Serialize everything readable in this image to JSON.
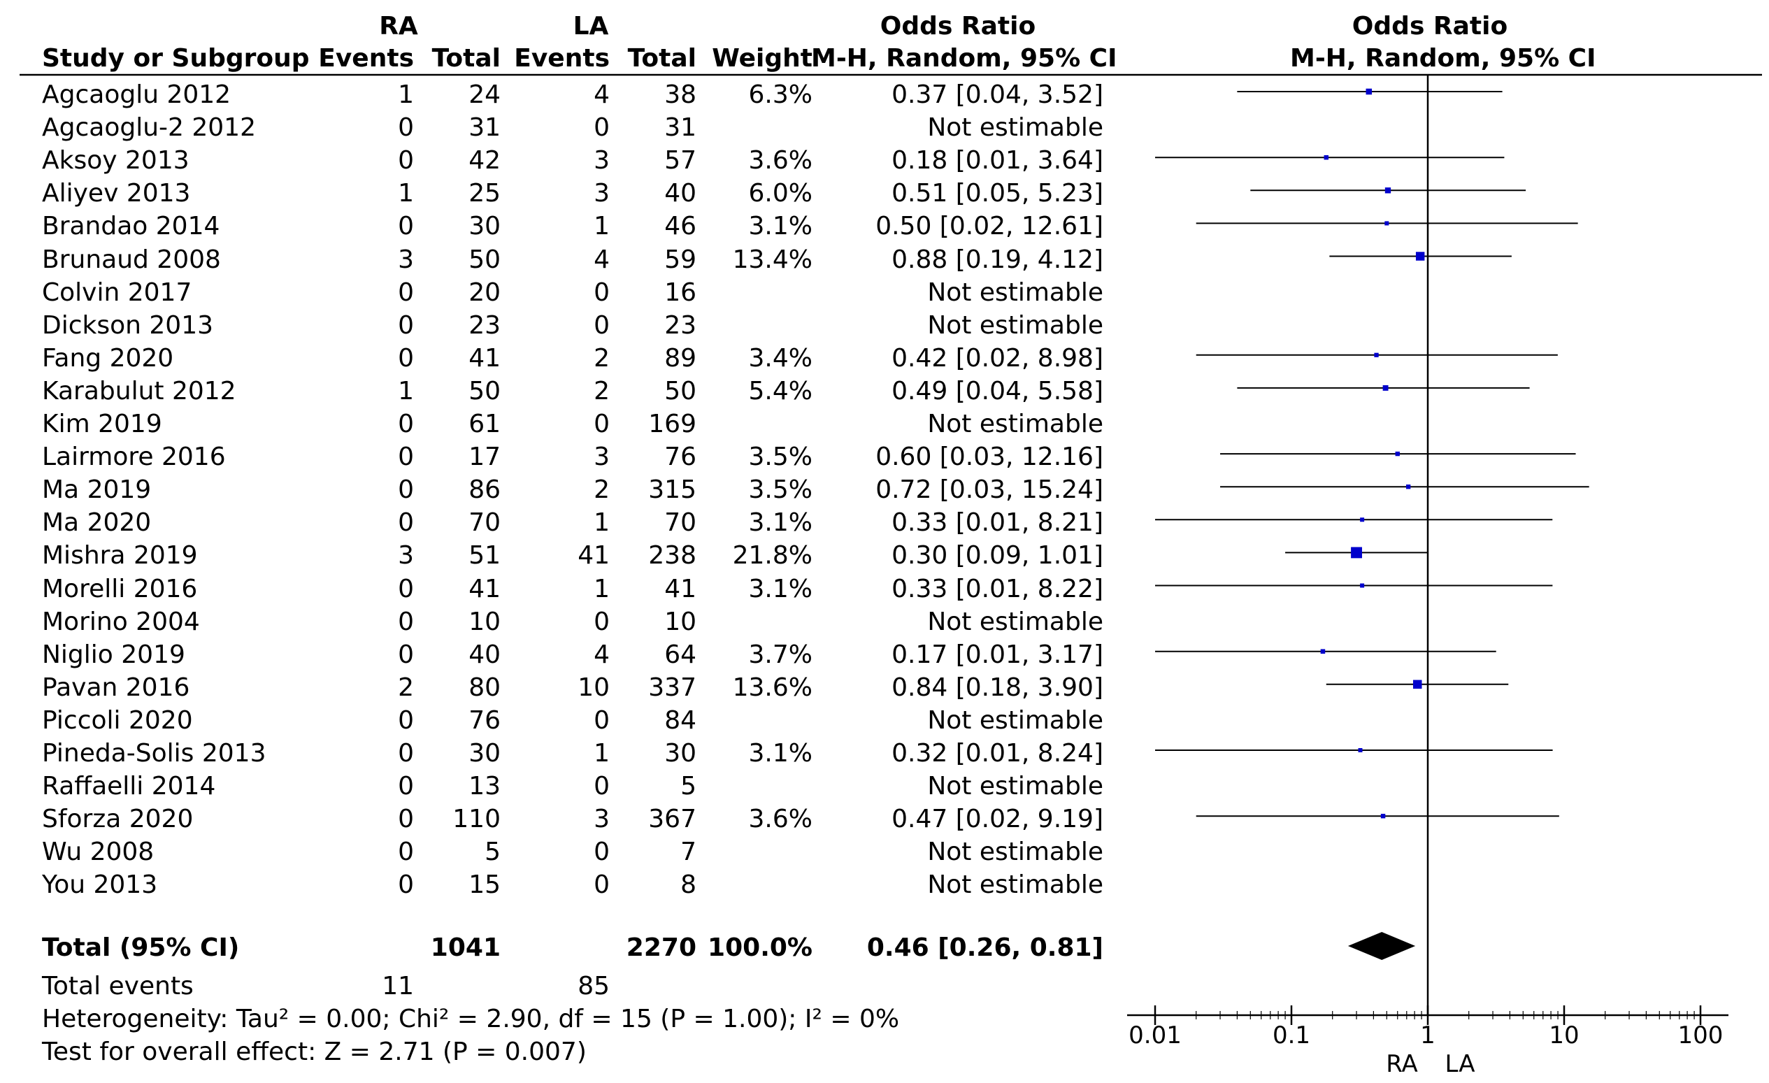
{
  "header": {
    "group_ra": "RA",
    "group_la": "LA",
    "or_title": "Odds Ratio",
    "or_method": "M-H, Random, 95% CI",
    "plot_title": "Odds Ratio",
    "plot_method": "M-H, Random, 95% CI",
    "col_study": "Study or Subgroup",
    "col_ra_events": "Events",
    "col_ra_total": "Total",
    "col_la_events": "Events",
    "col_la_total": "Total",
    "col_weight": "Weight"
  },
  "studies": [
    {
      "name": "Agcaoglu 2012",
      "ra_events": "1",
      "ra_total": "24",
      "la_events": "4",
      "la_total": "38",
      "weight": "6.3%",
      "ci_text": "0.37 [0.04, 3.52]"
    },
    {
      "name": "Agcaoglu-2 2012",
      "ra_events": "0",
      "ra_total": "31",
      "la_events": "0",
      "la_total": "31",
      "weight": "",
      "ci_text": "Not estimable"
    },
    {
      "name": "Aksoy 2013",
      "ra_events": "0",
      "ra_total": "42",
      "la_events": "3",
      "la_total": "57",
      "weight": "3.6%",
      "ci_text": "0.18 [0.01, 3.64]"
    },
    {
      "name": "Aliyev 2013",
      "ra_events": "1",
      "ra_total": "25",
      "la_events": "3",
      "la_total": "40",
      "weight": "6.0%",
      "ci_text": "0.51 [0.05, 5.23]"
    },
    {
      "name": "Brandao 2014",
      "ra_events": "0",
      "ra_total": "30",
      "la_events": "1",
      "la_total": "46",
      "weight": "3.1%",
      "ci_text": "0.50 [0.02, 12.61]"
    },
    {
      "name": "Brunaud 2008",
      "ra_events": "3",
      "ra_total": "50",
      "la_events": "4",
      "la_total": "59",
      "weight": "13.4%",
      "ci_text": "0.88 [0.19, 4.12]"
    },
    {
      "name": "Colvin 2017",
      "ra_events": "0",
      "ra_total": "20",
      "la_events": "0",
      "la_total": "16",
      "weight": "",
      "ci_text": "Not estimable"
    },
    {
      "name": "Dickson 2013",
      "ra_events": "0",
      "ra_total": "23",
      "la_events": "0",
      "la_total": "23",
      "weight": "",
      "ci_text": "Not estimable"
    },
    {
      "name": "Fang 2020",
      "ra_events": "0",
      "ra_total": "41",
      "la_events": "2",
      "la_total": "89",
      "weight": "3.4%",
      "ci_text": "0.42 [0.02, 8.98]"
    },
    {
      "name": "Karabulut 2012",
      "ra_events": "1",
      "ra_total": "50",
      "la_events": "2",
      "la_total": "50",
      "weight": "5.4%",
      "ci_text": "0.49 [0.04, 5.58]"
    },
    {
      "name": "Kim 2019",
      "ra_events": "0",
      "ra_total": "61",
      "la_events": "0",
      "la_total": "169",
      "weight": "",
      "ci_text": "Not estimable"
    },
    {
      "name": "Lairmore 2016",
      "ra_events": "0",
      "ra_total": "17",
      "la_events": "3",
      "la_total": "76",
      "weight": "3.5%",
      "ci_text": "0.60 [0.03, 12.16]"
    },
    {
      "name": "Ma 2019",
      "ra_events": "0",
      "ra_total": "86",
      "la_events": "2",
      "la_total": "315",
      "weight": "3.5%",
      "ci_text": "0.72 [0.03, 15.24]"
    },
    {
      "name": "Ma 2020",
      "ra_events": "0",
      "ra_total": "70",
      "la_events": "1",
      "la_total": "70",
      "weight": "3.1%",
      "ci_text": "0.33 [0.01, 8.21]"
    },
    {
      "name": "Mishra 2019",
      "ra_events": "3",
      "ra_total": "51",
      "la_events": "41",
      "la_total": "238",
      "weight": "21.8%",
      "ci_text": "0.30 [0.09, 1.01]"
    },
    {
      "name": "Morelli 2016",
      "ra_events": "0",
      "ra_total": "41",
      "la_events": "1",
      "la_total": "41",
      "weight": "3.1%",
      "ci_text": "0.33 [0.01, 8.22]"
    },
    {
      "name": "Morino 2004",
      "ra_events": "0",
      "ra_total": "10",
      "la_events": "0",
      "la_total": "10",
      "weight": "",
      "ci_text": "Not estimable"
    },
    {
      "name": "Niglio 2019",
      "ra_events": "0",
      "ra_total": "40",
      "la_events": "4",
      "la_total": "64",
      "weight": "3.7%",
      "ci_text": "0.17 [0.01, 3.17]"
    },
    {
      "name": "Pavan 2016",
      "ra_events": "2",
      "ra_total": "80",
      "la_events": "10",
      "la_total": "337",
      "weight": "13.6%",
      "ci_text": "0.84 [0.18, 3.90]"
    },
    {
      "name": "Piccoli 2020",
      "ra_events": "0",
      "ra_total": "76",
      "la_events": "0",
      "la_total": "84",
      "weight": "",
      "ci_text": "Not estimable"
    },
    {
      "name": "Pineda-Solis 2013",
      "ra_events": "0",
      "ra_total": "30",
      "la_events": "1",
      "la_total": "30",
      "weight": "3.1%",
      "ci_text": "0.32 [0.01, 8.24]"
    },
    {
      "name": "Raffaelli 2014",
      "ra_events": "0",
      "ra_total": "13",
      "la_events": "0",
      "la_total": "5",
      "weight": "",
      "ci_text": "Not estimable"
    },
    {
      "name": "Sforza 2020",
      "ra_events": "0",
      "ra_total": "110",
      "la_events": "3",
      "la_total": "367",
      "weight": "3.6%",
      "ci_text": "0.47 [0.02, 9.19]"
    },
    {
      "name": "Wu 2008",
      "ra_events": "0",
      "ra_total": "5",
      "la_events": "0",
      "la_total": "7",
      "weight": "",
      "ci_text": "Not estimable"
    },
    {
      "name": "You 2013",
      "ra_events": "0",
      "ra_total": "15",
      "la_events": "0",
      "la_total": "8",
      "weight": "",
      "ci_text": "Not estimable"
    }
  ],
  "total": {
    "label": "Total (95% CI)",
    "ra_total": "1041",
    "la_total": "2270",
    "weight": "100.0%",
    "ci_text": "0.46 [0.26, 0.81]"
  },
  "total_events": {
    "label": "Total events",
    "ra": "11",
    "la": "85"
  },
  "heterogeneity": "Heterogeneity: Tau² = 0.00; Chi² = 2.90, df = 15 (P = 1.00); I² = 0%",
  "overall_effect": "Test for overall effect: Z = 2.71 (P = 0.007)",
  "axis": {
    "favours_left": "RA",
    "favours_right": "LA"
  },
  "colors": {
    "marker": "#0000cc",
    "diamond": "#000000",
    "line": "#000000"
  },
  "chart_data": {
    "type": "scatter",
    "title": "Odds Ratio",
    "subtitle": "M-H, Random, 95% CI",
    "xlabel": "RA   LA",
    "xscale": "log",
    "xlim": [
      0.01,
      100
    ],
    "ticks": [
      0.01,
      0.1,
      1,
      10,
      100
    ],
    "tick_labels": [
      "0.01",
      "0.1",
      "1",
      "10",
      "100"
    ],
    "reference_line": 1,
    "points": [
      {
        "study": "Agcaoglu 2012",
        "or": 0.37,
        "lo": 0.04,
        "hi": 3.52,
        "weight": 6.3
      },
      {
        "study": "Agcaoglu-2 2012",
        "or": null,
        "lo": null,
        "hi": null,
        "weight": null
      },
      {
        "study": "Aksoy 2013",
        "or": 0.18,
        "lo": 0.01,
        "hi": 3.64,
        "weight": 3.6
      },
      {
        "study": "Aliyev 2013",
        "or": 0.51,
        "lo": 0.05,
        "hi": 5.23,
        "weight": 6.0
      },
      {
        "study": "Brandao 2014",
        "or": 0.5,
        "lo": 0.02,
        "hi": 12.61,
        "weight": 3.1
      },
      {
        "study": "Brunaud 2008",
        "or": 0.88,
        "lo": 0.19,
        "hi": 4.12,
        "weight": 13.4
      },
      {
        "study": "Colvin 2017",
        "or": null,
        "lo": null,
        "hi": null,
        "weight": null
      },
      {
        "study": "Dickson 2013",
        "or": null,
        "lo": null,
        "hi": null,
        "weight": null
      },
      {
        "study": "Fang 2020",
        "or": 0.42,
        "lo": 0.02,
        "hi": 8.98,
        "weight": 3.4
      },
      {
        "study": "Karabulut 2012",
        "or": 0.49,
        "lo": 0.04,
        "hi": 5.58,
        "weight": 5.4
      },
      {
        "study": "Kim 2019",
        "or": null,
        "lo": null,
        "hi": null,
        "weight": null
      },
      {
        "study": "Lairmore 2016",
        "or": 0.6,
        "lo": 0.03,
        "hi": 12.16,
        "weight": 3.5
      },
      {
        "study": "Ma 2019",
        "or": 0.72,
        "lo": 0.03,
        "hi": 15.24,
        "weight": 3.5
      },
      {
        "study": "Ma 2020",
        "or": 0.33,
        "lo": 0.01,
        "hi": 8.21,
        "weight": 3.1
      },
      {
        "study": "Mishra 2019",
        "or": 0.3,
        "lo": 0.09,
        "hi": 1.01,
        "weight": 21.8
      },
      {
        "study": "Morelli 2016",
        "or": 0.33,
        "lo": 0.01,
        "hi": 8.22,
        "weight": 3.1
      },
      {
        "study": "Morino 2004",
        "or": null,
        "lo": null,
        "hi": null,
        "weight": null
      },
      {
        "study": "Niglio 2019",
        "or": 0.17,
        "lo": 0.01,
        "hi": 3.17,
        "weight": 3.7
      },
      {
        "study": "Pavan 2016",
        "or": 0.84,
        "lo": 0.18,
        "hi": 3.9,
        "weight": 13.6
      },
      {
        "study": "Piccoli 2020",
        "or": null,
        "lo": null,
        "hi": null,
        "weight": null
      },
      {
        "study": "Pineda-Solis 2013",
        "or": 0.32,
        "lo": 0.01,
        "hi": 8.24,
        "weight": 3.1
      },
      {
        "study": "Raffaelli 2014",
        "or": null,
        "lo": null,
        "hi": null,
        "weight": null
      },
      {
        "study": "Sforza 2020",
        "or": 0.47,
        "lo": 0.02,
        "hi": 9.19,
        "weight": 3.6
      },
      {
        "study": "Wu 2008",
        "or": null,
        "lo": null,
        "hi": null,
        "weight": null
      },
      {
        "study": "You 2013",
        "or": null,
        "lo": null,
        "hi": null,
        "weight": null
      }
    ],
    "pooled": {
      "or": 0.46,
      "lo": 0.26,
      "hi": 0.81,
      "weight": 100.0
    }
  }
}
